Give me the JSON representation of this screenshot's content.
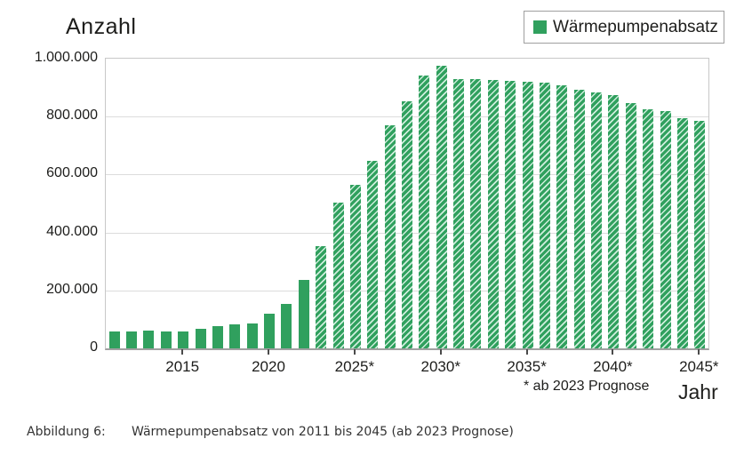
{
  "chart": {
    "title": "Anzahl",
    "legend_label": "Wärmepumpenabsatz",
    "footnote": "* ab 2023 Prognose",
    "x_axis_label": "Jahr"
  },
  "caption": {
    "label": "Abbildung 6:",
    "text": "Wärmepumpenabsatz von 2011 bis 2045 (ab 2023 Prognose)"
  },
  "colors": {
    "bar_green": "#30a05e",
    "hatch_light_green": "#cfeedd",
    "gridline": "#dcdcdc",
    "plot_border": "#c8c8c8",
    "axis_line": "#a0a0a0",
    "text": "#1d1d1b"
  },
  "chart_data": {
    "type": "bar",
    "title": "Anzahl",
    "xlabel": "Jahr",
    "ylabel": "Anzahl",
    "ylim": [
      0,
      1000000
    ],
    "grid": true,
    "legend_position": "top-right",
    "legend": [
      "Wärmepumpenabsatz"
    ],
    "forecast_from_year": 2023,
    "forecast_note": "* ab 2023 Prognose",
    "yticks": [
      {
        "value": 0,
        "label": "0"
      },
      {
        "value": 200000,
        "label": "200.000"
      },
      {
        "value": 400000,
        "label": "400.000"
      },
      {
        "value": 600000,
        "label": "600.000"
      },
      {
        "value": 800000,
        "label": "800.000"
      },
      {
        "value": 1000000,
        "label": "1.000.000"
      }
    ],
    "xticks": [
      {
        "year": 2015,
        "label": "2015"
      },
      {
        "year": 2020,
        "label": "2020"
      },
      {
        "year": 2025,
        "label": "2025*"
      },
      {
        "year": 2030,
        "label": "2030*"
      },
      {
        "year": 2035,
        "label": "2035*"
      },
      {
        "year": 2040,
        "label": "2040*"
      },
      {
        "year": 2045,
        "label": "2045*"
      }
    ],
    "series": [
      {
        "name": "Wärmepumpenabsatz",
        "points": [
          {
            "year": 2011,
            "value": 57000,
            "forecast": false
          },
          {
            "year": 2012,
            "value": 59500,
            "forecast": false
          },
          {
            "year": 2013,
            "value": 60000,
            "forecast": false
          },
          {
            "year": 2014,
            "value": 58000,
            "forecast": false
          },
          {
            "year": 2015,
            "value": 57000,
            "forecast": false
          },
          {
            "year": 2016,
            "value": 66500,
            "forecast": false
          },
          {
            "year": 2017,
            "value": 78000,
            "forecast": false
          },
          {
            "year": 2018,
            "value": 84000,
            "forecast": false
          },
          {
            "year": 2019,
            "value": 86000,
            "forecast": false
          },
          {
            "year": 2020,
            "value": 120000,
            "forecast": false
          },
          {
            "year": 2021,
            "value": 154000,
            "forecast": false
          },
          {
            "year": 2022,
            "value": 236000,
            "forecast": false
          },
          {
            "year": 2023,
            "value": 352000,
            "forecast": true
          },
          {
            "year": 2024,
            "value": 503000,
            "forecast": true
          },
          {
            "year": 2025,
            "value": 565000,
            "forecast": true
          },
          {
            "year": 2026,
            "value": 648000,
            "forecast": true
          },
          {
            "year": 2027,
            "value": 769000,
            "forecast": true
          },
          {
            "year": 2028,
            "value": 853000,
            "forecast": true
          },
          {
            "year": 2029,
            "value": 941000,
            "forecast": true
          },
          {
            "year": 2030,
            "value": 976000,
            "forecast": true
          },
          {
            "year": 2031,
            "value": 930000,
            "forecast": true
          },
          {
            "year": 2032,
            "value": 928000,
            "forecast": true
          },
          {
            "year": 2033,
            "value": 925000,
            "forecast": true
          },
          {
            "year": 2034,
            "value": 922000,
            "forecast": true
          },
          {
            "year": 2035,
            "value": 919000,
            "forecast": true
          },
          {
            "year": 2036,
            "value": 916000,
            "forecast": true
          },
          {
            "year": 2037,
            "value": 907000,
            "forecast": true
          },
          {
            "year": 2038,
            "value": 894000,
            "forecast": true
          },
          {
            "year": 2039,
            "value": 882000,
            "forecast": true
          },
          {
            "year": 2040,
            "value": 873000,
            "forecast": true
          },
          {
            "year": 2041,
            "value": 847000,
            "forecast": true
          },
          {
            "year": 2042,
            "value": 824000,
            "forecast": true
          },
          {
            "year": 2043,
            "value": 820000,
            "forecast": true
          },
          {
            "year": 2044,
            "value": 794000,
            "forecast": true
          },
          {
            "year": 2045,
            "value": 786000,
            "forecast": true
          }
        ]
      }
    ]
  }
}
